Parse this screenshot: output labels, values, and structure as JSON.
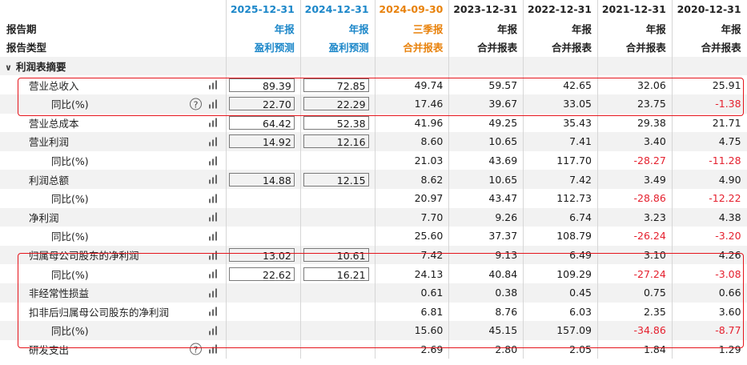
{
  "header": {
    "dates": [
      "2025-12-31",
      "2024-12-31",
      "2024-09-30",
      "2023-12-31",
      "2022-12-31",
      "2021-12-31",
      "2020-12-31"
    ],
    "date_colors": [
      "#1c87c9",
      "#1c87c9",
      "#e8820c",
      "#222222",
      "#222222",
      "#222222",
      "#222222"
    ],
    "period_label": "报告期",
    "periods": [
      "年报",
      "年报",
      "三季报",
      "年报",
      "年报",
      "年报",
      "年报"
    ],
    "type_label": "报告类型",
    "types": [
      "盈利预测",
      "盈利预测",
      "合并报表",
      "合并报表",
      "合并报表",
      "合并报表",
      "合并报表"
    ]
  },
  "section": {
    "label": "利润表摘要",
    "chevron": "∨"
  },
  "rows": [
    {
      "label": "营业总收入",
      "indent": 1,
      "help": false,
      "values": [
        "89.39",
        "72.85",
        "49.74",
        "59.57",
        "42.65",
        "32.06",
        "25.91"
      ],
      "boxed": [
        true,
        true,
        false,
        false,
        false,
        false,
        false
      ]
    },
    {
      "label": "同比(%)",
      "indent": 2,
      "help": true,
      "values": [
        "22.70",
        "22.29",
        "17.46",
        "39.67",
        "33.05",
        "23.75",
        "-1.38"
      ],
      "boxed": [
        true,
        true,
        false,
        false,
        false,
        false,
        false
      ]
    },
    {
      "label": "营业总成本",
      "indent": 1,
      "help": false,
      "values": [
        "64.42",
        "52.38",
        "41.96",
        "49.25",
        "35.43",
        "29.38",
        "21.71"
      ],
      "boxed": [
        true,
        true,
        false,
        false,
        false,
        false,
        false
      ]
    },
    {
      "label": "营业利润",
      "indent": 1,
      "help": false,
      "values": [
        "14.92",
        "12.16",
        "8.60",
        "10.65",
        "7.41",
        "3.40",
        "4.75"
      ],
      "boxed": [
        true,
        true,
        false,
        false,
        false,
        false,
        false
      ]
    },
    {
      "label": "同比(%)",
      "indent": 2,
      "help": false,
      "values": [
        "",
        "",
        "21.03",
        "43.69",
        "117.70",
        "-28.27",
        "-11.28"
      ],
      "boxed": [
        false,
        false,
        false,
        false,
        false,
        false,
        false
      ]
    },
    {
      "label": "利润总额",
      "indent": 1,
      "help": false,
      "values": [
        "14.88",
        "12.15",
        "8.62",
        "10.65",
        "7.42",
        "3.49",
        "4.90"
      ],
      "boxed": [
        true,
        true,
        false,
        false,
        false,
        false,
        false
      ]
    },
    {
      "label": "同比(%)",
      "indent": 2,
      "help": false,
      "values": [
        "",
        "",
        "20.97",
        "43.47",
        "112.73",
        "-28.86",
        "-12.22"
      ],
      "boxed": [
        false,
        false,
        false,
        false,
        false,
        false,
        false
      ]
    },
    {
      "label": "净利润",
      "indent": 1,
      "help": false,
      "values": [
        "",
        "",
        "7.70",
        "9.26",
        "6.74",
        "3.23",
        "4.38"
      ],
      "boxed": [
        false,
        false,
        false,
        false,
        false,
        false,
        false
      ]
    },
    {
      "label": "同比(%)",
      "indent": 2,
      "help": false,
      "values": [
        "",
        "",
        "25.60",
        "37.37",
        "108.79",
        "-26.24",
        "-3.20"
      ],
      "boxed": [
        false,
        false,
        false,
        false,
        false,
        false,
        false
      ]
    },
    {
      "label": "归属母公司股东的净利润",
      "indent": 1,
      "help": false,
      "values": [
        "13.02",
        "10.61",
        "7.42",
        "9.13",
        "6.49",
        "3.10",
        "4.26"
      ],
      "boxed": [
        true,
        true,
        false,
        false,
        false,
        false,
        false
      ]
    },
    {
      "label": "同比(%)",
      "indent": 2,
      "help": false,
      "values": [
        "22.62",
        "16.21",
        "24.13",
        "40.84",
        "109.29",
        "-27.24",
        "-3.08"
      ],
      "boxed": [
        true,
        true,
        false,
        false,
        false,
        false,
        false
      ]
    },
    {
      "label": "非经常性损益",
      "indent": 1,
      "help": false,
      "values": [
        "",
        "",
        "0.61",
        "0.38",
        "0.45",
        "0.75",
        "0.66"
      ],
      "boxed": [
        false,
        false,
        false,
        false,
        false,
        false,
        false
      ]
    },
    {
      "label": "扣非后归属母公司股东的净利润",
      "indent": 1,
      "help": false,
      "values": [
        "",
        "",
        "6.81",
        "8.76",
        "6.03",
        "2.35",
        "3.60"
      ],
      "boxed": [
        false,
        false,
        false,
        false,
        false,
        false,
        false
      ]
    },
    {
      "label": "同比(%)",
      "indent": 2,
      "help": false,
      "values": [
        "",
        "",
        "15.60",
        "45.15",
        "157.09",
        "-34.86",
        "-8.77"
      ],
      "boxed": [
        false,
        false,
        false,
        false,
        false,
        false,
        false
      ]
    },
    {
      "label": "研发支出",
      "indent": 1,
      "help": true,
      "values": [
        "",
        "",
        "2.69",
        "2.80",
        "2.05",
        "1.84",
        "1.29"
      ],
      "boxed": [
        false,
        false,
        false,
        false,
        false,
        false,
        false
      ]
    }
  ],
  "colors": {
    "negative": "#e5202e",
    "forecast": "#1c87c9",
    "quarterly": "#e8820c",
    "highlight": "#e5141b"
  },
  "icons": {
    "bar": "bar-chart-icon",
    "help": "help-icon"
  }
}
